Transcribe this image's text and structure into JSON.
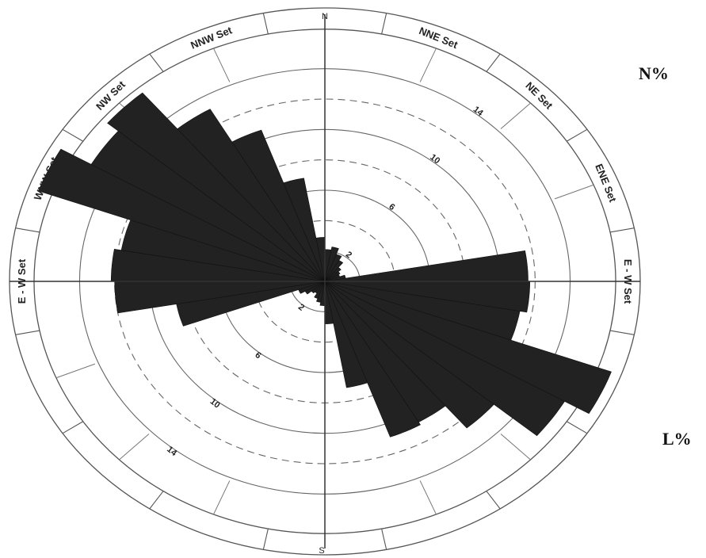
{
  "side_labels": {
    "top": "N%",
    "bottom": "L%"
  },
  "chart_data": {
    "type": "rose",
    "title": "",
    "directions": {
      "north": "N",
      "south": "S"
    },
    "set_labels": [
      {
        "text": "NNW Set",
        "bearing": 338
      },
      {
        "text": "NW Set",
        "bearing": 315
      },
      {
        "text": "WNW Set",
        "bearing": 293
      },
      {
        "text": "E - W Set",
        "bearing": 270
      },
      {
        "text": "NNE Set",
        "bearing": 22
      },
      {
        "text": "NE Set",
        "bearing": 45
      },
      {
        "text": "ENE Set",
        "bearing": 68
      },
      {
        "text": "E - W Set",
        "bearing": 90
      }
    ],
    "rings": [
      2,
      6,
      10,
      14
    ],
    "dashed_rings": [
      4,
      8,
      12
    ],
    "rmax": 18,
    "ring_labels_upper_right": [
      {
        "text": "2",
        "r": 2
      },
      {
        "text": "6",
        "r": 6
      },
      {
        "text": "10",
        "r": 10
      },
      {
        "text": "14",
        "r": 14
      }
    ],
    "ring_labels_lower_left": [
      {
        "text": "2",
        "r": 2
      },
      {
        "text": "6",
        "r": 6
      },
      {
        "text": "10",
        "r": 10
      },
      {
        "text": "14",
        "r": 14
      }
    ],
    "petal_width_deg": 10,
    "petal_fill": "#222222",
    "petals": [
      {
        "bearing": 5,
        "value": 2.1
      },
      {
        "bearing": 15,
        "value": 2.3
      },
      {
        "bearing": 25,
        "value": 1.9
      },
      {
        "bearing": 35,
        "value": 1.6
      },
      {
        "bearing": 45,
        "value": 1.2
      },
      {
        "bearing": 55,
        "value": 1.0
      },
      {
        "bearing": 65,
        "value": 0.9
      },
      {
        "bearing": 75,
        "value": 1.2
      },
      {
        "bearing": 85,
        "value": 11.6
      },
      {
        "bearing": 95,
        "value": 11.7
      },
      {
        "bearing": 105,
        "value": 11.3
      },
      {
        "bearing": 115,
        "value": 17.4
      },
      {
        "bearing": 125,
        "value": 15.8
      },
      {
        "bearing": 135,
        "value": 12.6
      },
      {
        "bearing": 145,
        "value": 10.7
      },
      {
        "bearing": 155,
        "value": 10.9
      },
      {
        "bearing": 165,
        "value": 7.1
      },
      {
        "bearing": 175,
        "value": 2.8
      },
      {
        "bearing": 185,
        "value": 1.6
      },
      {
        "bearing": 195,
        "value": 1.4
      },
      {
        "bearing": 205,
        "value": 1.2
      },
      {
        "bearing": 215,
        "value": 0.9
      },
      {
        "bearing": 225,
        "value": 1.0
      },
      {
        "bearing": 235,
        "value": 1.3
      },
      {
        "bearing": 245,
        "value": 1.6
      },
      {
        "bearing": 255,
        "value": 8.6
      },
      {
        "bearing": 265,
        "value": 12.0
      },
      {
        "bearing": 275,
        "value": 12.2
      },
      {
        "bearing": 285,
        "value": 11.8
      },
      {
        "bearing": 295,
        "value": 17.4
      },
      {
        "bearing": 305,
        "value": 15.4
      },
      {
        "bearing": 315,
        "value": 16.2
      },
      {
        "bearing": 325,
        "value": 13.1
      },
      {
        "bearing": 335,
        "value": 10.6
      },
      {
        "bearing": 345,
        "value": 6.9
      },
      {
        "bearing": 355,
        "value": 2.9
      }
    ]
  }
}
